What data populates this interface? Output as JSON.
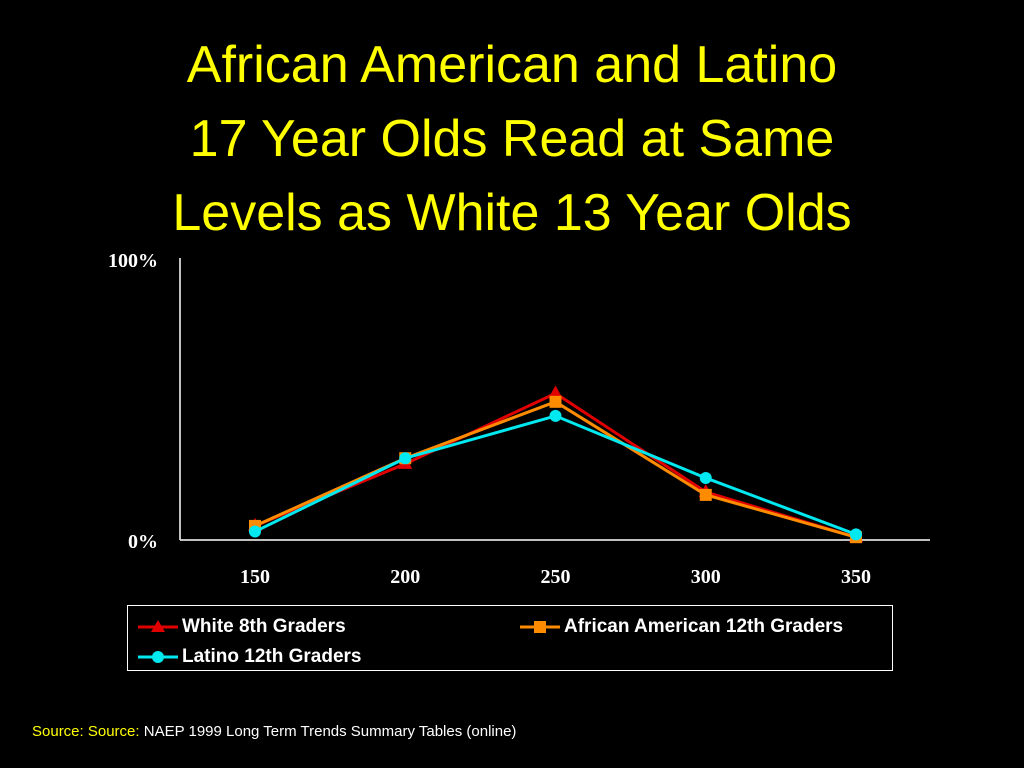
{
  "title_lines": [
    "African American and Latino",
    "17 Year Olds Read at Same",
    "Levels as White 13 Year Olds"
  ],
  "source": {
    "label": "Source: Source:",
    "text": "NAEP 1999 Long Term Trends Summary Tables (online)"
  },
  "colors": {
    "background": "#000000",
    "title": "#ffff00",
    "axis": "#ffffff"
  },
  "chart_data": {
    "type": "line",
    "title": "",
    "xlabel": "",
    "ylabel": "",
    "x": [
      150,
      200,
      250,
      300,
      350
    ],
    "xlim": [
      150,
      350
    ],
    "ylim": [
      0,
      100
    ],
    "y_tick_labels": [
      "100%",
      "0%"
    ],
    "x_tick_labels": [
      "150",
      "200",
      "250",
      "300",
      "350"
    ],
    "grid": false,
    "legend_position": "bottom",
    "series": [
      {
        "name": "White 8th Graders",
        "color": "#e00000",
        "marker": "triangle",
        "values": [
          5,
          27,
          52,
          17,
          1
        ]
      },
      {
        "name": "African American 12th Graders",
        "color": "#ff8c00",
        "marker": "square",
        "values": [
          5,
          29,
          49,
          16,
          1
        ]
      },
      {
        "name": "Latino 12th Graders",
        "color": "#00e8f0",
        "marker": "circle",
        "values": [
          3,
          29,
          44,
          22,
          2
        ]
      }
    ]
  }
}
